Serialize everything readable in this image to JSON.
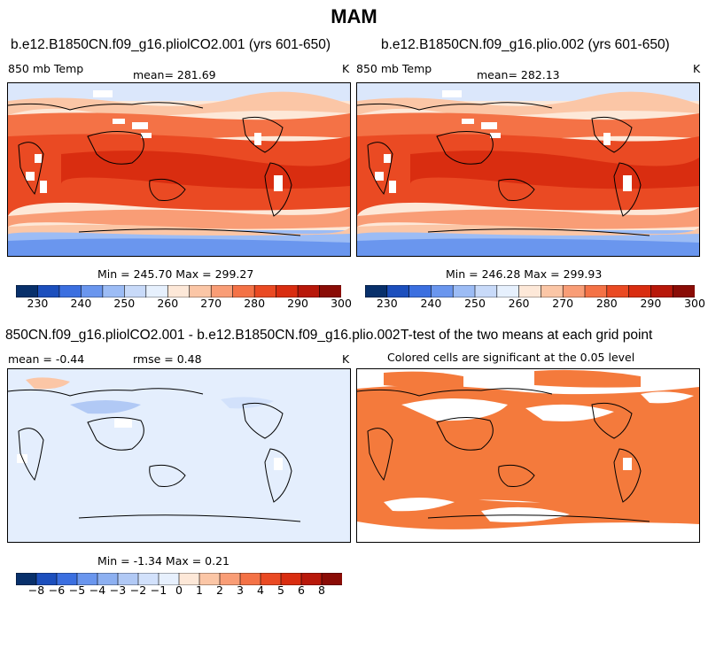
{
  "figure": {
    "title": "MAM"
  },
  "panels": [
    {
      "id": "p1",
      "title": "b.e12.B1850CN.f09_g16.pliolCO2.001 (yrs 601-650)",
      "variable": "850 mb Temp",
      "mean_text": "mean= 281.69",
      "unit": "K",
      "minmax_text": "Min = 245.70 Max = 299.27"
    },
    {
      "id": "p2",
      "title": "b.e12.B1850CN.f09_g16.plio.002 (yrs 601-650)",
      "variable": "850 mb Temp",
      "mean_text": "mean= 282.13",
      "unit": "K",
      "minmax_text": "Min = 246.28 Max = 299.93"
    },
    {
      "id": "p3",
      "title": "850CN.f09_g16.pliolCO2.001 - b.e12.B1850CN.f09_g16.plio.002",
      "mean_text": "mean =  -0.44",
      "rmse_text": "rmse =   0.48",
      "unit": "K",
      "minmax_text": "Min =  -1.34 Max =   0.21"
    },
    {
      "id": "p4",
      "title": "T-test of the two means at each grid point",
      "subtitle": "Colored cells are significant at the 0.05 level"
    }
  ],
  "colorbars": {
    "abs": {
      "labels": [
        "230",
        "240",
        "250",
        "260",
        "270",
        "280",
        "290",
        "300"
      ],
      "colors": [
        "#08306b",
        "#1c4fbd",
        "#3b6fe0",
        "#6a96ee",
        "#9cbcf5",
        "#c8daf9",
        "#e6f0fd",
        "#fde8d8",
        "#fbc6a6",
        "#f99d76",
        "#f47246",
        "#ea4a23",
        "#d92d10",
        "#b8180a",
        "#8a0c06"
      ]
    },
    "diff": {
      "labels": [
        "−8",
        "−6",
        "−5",
        "−4",
        "−3",
        "−2",
        "−1",
        "0",
        "1",
        "2",
        "3",
        "4",
        "5",
        "6",
        "8"
      ],
      "colors": [
        "#08306b",
        "#1c4fbd",
        "#3b6fe0",
        "#6a96ee",
        "#8db0f1",
        "#b1c9f5",
        "#d2e1fb",
        "#e7f0fd",
        "#fde8d8",
        "#fbc6a6",
        "#f99d76",
        "#f47246",
        "#ea4a23",
        "#d92d10",
        "#b8180a",
        "#8a0c06"
      ]
    }
  },
  "chart_data": [
    {
      "type": "heatmap",
      "title": "b.e12.B1850CN.f09_g16.pliolCO2.001 (yrs 601-650)",
      "field": "850 mb Temp",
      "unit": "K",
      "mean": 281.69,
      "min": 245.7,
      "max": 299.27,
      "colorbar_ticks": [
        230,
        240,
        250,
        260,
        270,
        280,
        290,
        300
      ]
    },
    {
      "type": "heatmap",
      "title": "b.e12.B1850CN.f09_g16.plio.002 (yrs 601-650)",
      "field": "850 mb Temp",
      "unit": "K",
      "mean": 282.13,
      "min": 246.28,
      "max": 299.93,
      "colorbar_ticks": [
        230,
        240,
        250,
        260,
        270,
        280,
        290,
        300
      ]
    },
    {
      "type": "heatmap",
      "title": "850CN.f09_g16.pliolCO2.001 - b.e12.B1850CN.f09_g16.plio.002",
      "unit": "K",
      "mean": -0.44,
      "rmse": 0.48,
      "min": -1.34,
      "max": 0.21,
      "colorbar_ticks": [
        -8,
        -6,
        -5,
        -4,
        -3,
        -2,
        -1,
        0,
        1,
        2,
        3,
        4,
        5,
        6,
        8
      ]
    },
    {
      "type": "heatmap",
      "title": "T-test of the two means at each grid point",
      "subtitle": "Colored cells are significant at the 0.05 level",
      "significance_level": 0.05
    }
  ]
}
